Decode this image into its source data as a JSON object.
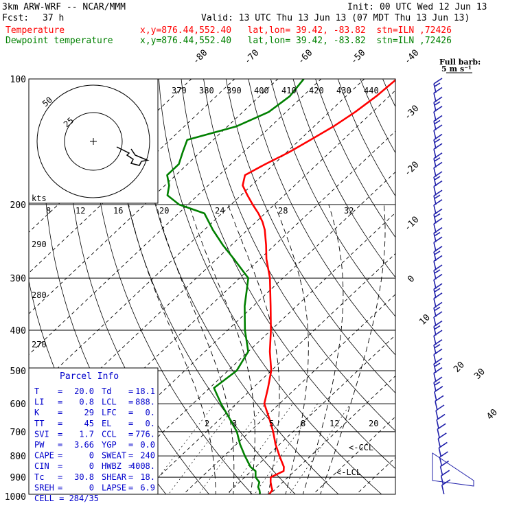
{
  "header": {
    "model": "3km ARW-WRF -- NCAR/MMM",
    "init": "Init: 00 UTC Wed 12 Jun 13",
    "fcst_label": "Fcst:",
    "fcst_value": "37 h",
    "valid": "Valid: 13 UTC Thu 13 Jun 13 (07 MDT Thu 13 Jun 13)",
    "temp_label": "Temperature",
    "dew_label": "Dewpoint temperature",
    "location": "x,y=876.44,552.40   lat,lon= 39.42, -83.82  stn=ILN ,72426"
  },
  "colors": {
    "temperature": "#ff0000",
    "dewpoint": "#008000",
    "parcel_box": "#0000cc",
    "barbs": "#2020aa",
    "grid": "#000000"
  },
  "wind_legend": {
    "line1": "Full barb:",
    "line2": "5 m s⁻¹"
  },
  "hodograph": {
    "units_label": "kts",
    "ring_labels": [
      "25",
      "50"
    ]
  },
  "parcel_info": {
    "title": "Parcel Info",
    "rows": [
      [
        "T",
        "20.0",
        "Td",
        "18.1"
      ],
      [
        "LI",
        "0.8",
        "LCL",
        "888."
      ],
      [
        "K",
        "29",
        "LFC",
        "0."
      ],
      [
        "TT",
        "45",
        "EL",
        "0."
      ],
      [
        "SVI",
        "1.7",
        "CCL",
        "776."
      ],
      [
        "PW",
        "3.66",
        "YGP",
        "0.0"
      ],
      [
        "CAPE",
        "0",
        "SWEAT",
        "240"
      ],
      [
        "CIN",
        "0",
        "HWBZ",
        "4008."
      ],
      [
        "Tc",
        "30.8",
        "SHEAR",
        "18."
      ],
      [
        "SREH",
        "0",
        "LAPSE",
        "6.9"
      ]
    ],
    "cell": "CELL = 284/35"
  },
  "annotations": {
    "ccl_label": "<-CCL",
    "lcl_label": "<-LCL"
  },
  "chart_data": {
    "type": "line",
    "diagram": "skew-T log-P",
    "pressure_axis_labels": [
      100,
      200,
      300,
      400,
      500,
      600,
      700,
      800,
      900,
      1000
    ],
    "isotherm_labels": [
      -80,
      -70,
      -60,
      -50,
      -40,
      -30,
      -20,
      -10,
      0,
      10,
      20,
      30,
      40
    ],
    "theta_labels": [
      370,
      380,
      390,
      400,
      410,
      420,
      430,
      440
    ],
    "theta_low_labels": [
      290,
      280,
      270
    ],
    "hodograph_speed_labels": [
      8,
      12,
      16,
      20,
      24,
      28,
      32
    ],
    "mixing_ratio_labels": [
      2,
      3,
      5,
      8,
      12,
      20
    ],
    "series": [
      {
        "name": "Temperature",
        "pressure": [
          1000,
          965,
          950,
          925,
          900,
          870,
          850,
          800,
          750,
          700,
          650,
          600,
          550,
          500,
          450,
          400,
          350,
          300,
          270,
          250,
          230,
          220,
          210,
          200,
          190,
          180,
          170,
          160,
          150,
          140,
          130,
          120,
          110,
          100
        ],
        "temperature": [
          20.0,
          19.5,
          18.6,
          17.2,
          16.0,
          17.5,
          16.5,
          12.8,
          9.0,
          5.4,
          1.2,
          -3.5,
          -6.5,
          -10.0,
          -15.0,
          -20.0,
          -26.0,
          -33.0,
          -38.5,
          -42.0,
          -46.0,
          -48.5,
          -51.5,
          -55.0,
          -58.5,
          -62.0,
          -64.0,
          -62.0,
          -59.5,
          -57.5,
          -55.5,
          -54.0,
          -53.0,
          -52.5
        ]
      },
      {
        "name": "Dewpoint temperature",
        "pressure": [
          1000,
          980,
          965,
          950,
          925,
          900,
          870,
          850,
          800,
          750,
          700,
          650,
          600,
          550,
          500,
          450,
          400,
          350,
          300,
          270,
          250,
          230,
          210,
          200,
          190,
          180,
          170,
          160,
          150,
          140,
          130,
          120,
          110,
          100
        ],
        "dewpoint": [
          18.1,
          17.3,
          16.5,
          15.5,
          14.6,
          12.5,
          11.0,
          8.8,
          4.8,
          0.8,
          -3.0,
          -8.0,
          -13.5,
          -19.0,
          -18.0,
          -20.0,
          -26.0,
          -32.0,
          -38.0,
          -46.0,
          -52.0,
          -58.0,
          -64.0,
          -72.0,
          -77.0,
          -79.0,
          -82.0,
          -82.0,
          -84.0,
          -86.0,
          -78.0,
          -74.0,
          -73.0,
          -74.0
        ]
      }
    ],
    "hodograph": {
      "u_kt": [
        0,
        6,
        5,
        8,
        7,
        11,
        12,
        15,
        9,
        7
      ],
      "v_kt": [
        0,
        -6,
        -8,
        -12,
        -16,
        -18,
        -14,
        -13,
        -8,
        -2
      ]
    }
  }
}
